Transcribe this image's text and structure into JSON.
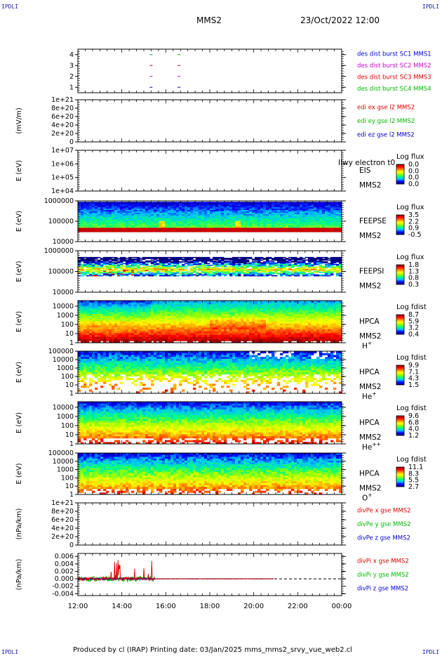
{
  "header": {
    "corner_tl": "IPDLI",
    "corner_tr": "IPDLI",
    "corner_bl": "IPDLI",
    "corner_br": "IPDLI",
    "spacecraft": "MMS2",
    "datetime": "23/Oct/2022 12:00"
  },
  "footer": {
    "credit": "Produced by cl (IRAP)   Printing date: 03/Jan/2025   mms_mms2_srvy_vue_web2.cl"
  },
  "colors": {
    "red": "#dd0000",
    "green": "#00bb00",
    "blue": "#0000cc",
    "magenta": "#cc00cc",
    "colorbar_stops": [
      "#000080",
      "#0000ff",
      "#00c0ff",
      "#00ff80",
      "#a0ff00",
      "#ffff00",
      "#ff8000",
      "#ff0000",
      "#900000"
    ]
  },
  "chart_data": [
    {
      "id": "burst",
      "type": "scatter",
      "ylabel": "",
      "yticks": [
        "1",
        "2",
        "3",
        "4"
      ],
      "ylim": [
        0.5,
        4.5
      ],
      "legend": [
        {
          "text": "des dist burst SC1 MMS1",
          "color": "#0000cc"
        },
        {
          "text": "des dist burst SC2 MMS2",
          "color": "#cc00cc"
        },
        {
          "text": "des dist burst SC3 MMS3",
          "color": "#dd0000"
        },
        {
          "text": "des dist burst SC4 MMS4",
          "color": "#00bb00"
        }
      ],
      "series": [
        {
          "sc": 4,
          "color": "#00bb00",
          "x": [
            15.33,
            16.6
          ]
        },
        {
          "sc": 3,
          "color": "#dd0000",
          "x": [
            15.33,
            16.6
          ]
        },
        {
          "sc": 2,
          "color": "#cc00cc",
          "x": [
            15.33,
            16.6
          ]
        },
        {
          "sc": 1,
          "color": "#0000cc",
          "x": [
            15.33,
            16.6
          ]
        }
      ]
    },
    {
      "id": "edi",
      "type": "line",
      "ylabel": "(mV/m)",
      "yticks": [
        "0",
        "2e+20",
        "4e+20",
        "6e+20",
        "8e+20",
        "1e+21"
      ],
      "ylim": [
        0,
        1e+21
      ],
      "zero_line": true,
      "legend": [
        {
          "text": "edi ex gse l2 MMS2",
          "color": "#dd0000"
        },
        {
          "text": "edi ey gse l2 MMS2",
          "color": "#00bb00"
        },
        {
          "text": "edi ez gse l2 MMS2",
          "color": "#0000cc"
        }
      ]
    },
    {
      "id": "eis",
      "type": "heatmap",
      "ylabel": "E (eV)",
      "yticks": [
        "1e+04",
        "1e+05",
        "1e+06",
        "1e+07"
      ],
      "ylim": [
        10000,
        10000000
      ],
      "log_y": true,
      "empty": true,
      "instrument": "EIS",
      "spacecraft": "MMS2",
      "overlay_text": "Ilwy electron t0",
      "colorbar_title": "Log flux",
      "colorbar_ticks": [
        "0.0",
        "0.0",
        "0.0",
        "0.0"
      ]
    },
    {
      "id": "feepse",
      "type": "heatmap",
      "ylabel": "E (eV)",
      "yticks": [
        "10000",
        "100000",
        "1000000"
      ],
      "ylim": [
        10000,
        1000000
      ],
      "log_y": true,
      "data_range": [
        30000,
        900000
      ],
      "instrument": "FEEPSE",
      "spacecraft": "MMS2",
      "colorbar_title": "Log flux",
      "colorbar_ticks": [
        "3.5",
        "2.2",
        "0.9",
        "-0.5"
      ]
    },
    {
      "id": "feepsi",
      "type": "heatmap",
      "ylabel": "E (eV)",
      "yticks": [
        "10000",
        "100000",
        "1000000"
      ],
      "ylim": [
        10000,
        1000000
      ],
      "log_y": true,
      "data_range": [
        60000,
        500000
      ],
      "instrument": "FEEPSI",
      "spacecraft": "MMS2",
      "colorbar_title": "Log flux",
      "colorbar_ticks": [
        "1.8",
        "1.3",
        "0.8",
        "0.3"
      ]
    },
    {
      "id": "hpca_h",
      "type": "heatmap",
      "ylabel": "E (eV)",
      "yticks": [
        "1",
        "10",
        "100",
        "1000",
        "10000"
      ],
      "ylim": [
        1,
        40000
      ],
      "log_y": true,
      "instrument": "HPCA",
      "spacecraft": "MMS2",
      "species": "H+",
      "colorbar_title": "Log fdist",
      "colorbar_ticks": [
        "8.7",
        "5.9",
        "3.2",
        "0.4"
      ]
    },
    {
      "id": "hpca_he",
      "type": "heatmap",
      "ylabel": "E (eV)",
      "yticks": [
        "1",
        "10",
        "100",
        "1000",
        "10000",
        "100000"
      ],
      "ylim": [
        1,
        100000
      ],
      "log_y": true,
      "instrument": "HPCA",
      "spacecraft": "MMS2",
      "species": "He+",
      "colorbar_title": "Log fdist",
      "colorbar_ticks": [
        "9.9",
        "7.1",
        "4.3",
        "1.5"
      ]
    },
    {
      "id": "hpca_hepp",
      "type": "heatmap",
      "ylabel": "E (eV)",
      "yticks": [
        "1",
        "10",
        "100",
        "1000",
        "10000"
      ],
      "ylim": [
        1,
        40000
      ],
      "log_y": true,
      "instrument": "HPCA",
      "spacecraft": "MMS2",
      "species": "He++",
      "colorbar_title": "Log fdist",
      "colorbar_ticks": [
        "9.6",
        "6.8",
        "4.0",
        "1.2"
      ]
    },
    {
      "id": "hpca_o",
      "type": "heatmap",
      "ylabel": "E (eV)",
      "yticks": [
        "1",
        "10",
        "100",
        "1000",
        "10000",
        "100000"
      ],
      "ylim": [
        1,
        100000
      ],
      "log_y": true,
      "instrument": "HPCA",
      "spacecraft": "MMS2",
      "species": "O+",
      "colorbar_title": "Log fdist",
      "colorbar_ticks": [
        "11.1",
        "8.3",
        "5.5",
        "2.7"
      ]
    },
    {
      "id": "divpe",
      "type": "line",
      "ylabel": "(nPa/km)",
      "yticks": [
        "0",
        "2e+20",
        "4e+20",
        "6e+20",
        "8e+20",
        "1e+21"
      ],
      "ylim": [
        0,
        1e+21
      ],
      "zero_line": true,
      "legend": [
        {
          "text": "divPe x gse MMS2",
          "color": "#dd0000"
        },
        {
          "text": "divPe y gse MMS2",
          "color": "#00bb00"
        },
        {
          "text": "divPe z gse MMS2",
          "color": "#0000cc"
        }
      ]
    },
    {
      "id": "divpi",
      "type": "line",
      "ylabel": "(nPa/km)",
      "yticks": [
        "-0.004",
        "-0.002",
        "0.000",
        "0.002",
        "0.004",
        "0.006"
      ],
      "ytick_values": [
        -0.004,
        -0.002,
        0,
        0.002,
        0.004,
        0.006
      ],
      "ylim": [
        -0.0045,
        0.0068
      ],
      "zero_line": true,
      "data_end_hour": 20.9,
      "legend": [
        {
          "text": "divPi x gse MMS2",
          "color": "#dd0000"
        },
        {
          "text": "divPi y gse MMS2",
          "color": "#00bb00"
        },
        {
          "text": "divPi z gse MMS2",
          "color": "#0000cc"
        }
      ]
    }
  ],
  "x_axis": {
    "hour_range": [
      12,
      24
    ],
    "ticks": [
      "12:00",
      "14:00",
      "16:00",
      "18:00",
      "20:00",
      "22:00",
      "00:00"
    ]
  }
}
